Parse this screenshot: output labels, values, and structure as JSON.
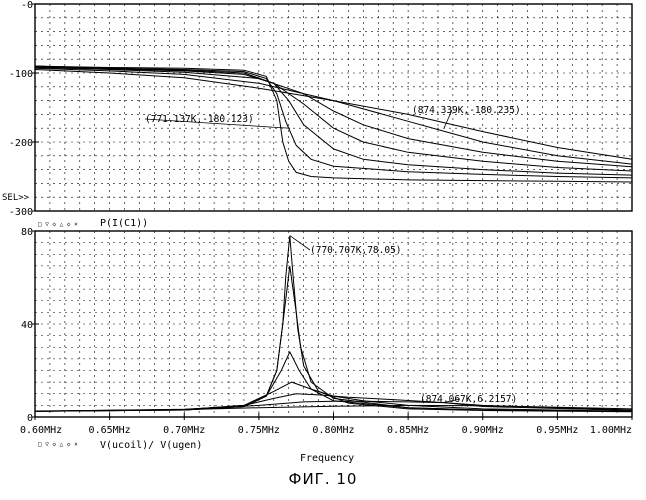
{
  "figure_caption": "ФИГ. 10",
  "chart_data": [
    {
      "type": "line",
      "panel": "top",
      "y_ticks": [
        "-0",
        "-100",
        "-200",
        "-300"
      ],
      "ylim": [
        -300,
        0
      ],
      "xlim": [
        0.6,
        1.0
      ],
      "cursor_label": "SEL>>",
      "trace_label": "",
      "annotations": [
        {
          "text": "(771.137K,-180.123)",
          "x": 0.771,
          "y": -180.123
        },
        {
          "text": "(874.339K,-180.235)",
          "x": 0.874,
          "y": -180.235
        }
      ],
      "series": [
        {
          "x": [
            0.6,
            0.65,
            0.7,
            0.74,
            0.755,
            0.762,
            0.766,
            0.77,
            0.775,
            0.785,
            0.8,
            0.85,
            0.9,
            0.95,
            1.0
          ],
          "y": [
            -90,
            -92,
            -93,
            -96,
            -105,
            -140,
            -200,
            -228,
            -244,
            -250,
            -252,
            -255,
            -256,
            -257,
            -258
          ]
        },
        {
          "x": [
            0.6,
            0.65,
            0.7,
            0.74,
            0.755,
            0.762,
            0.768,
            0.775,
            0.785,
            0.8,
            0.85,
            0.9,
            0.95,
            1.0
          ],
          "y": [
            -90,
            -93,
            -95,
            -98,
            -108,
            -130,
            -170,
            -205,
            -225,
            -235,
            -243,
            -247,
            -250,
            -252
          ]
        },
        {
          "x": [
            0.6,
            0.65,
            0.7,
            0.74,
            0.76,
            0.77,
            0.78,
            0.8,
            0.82,
            0.85,
            0.9,
            0.95,
            1.0
          ],
          "y": [
            -90,
            -93,
            -96,
            -100,
            -115,
            -140,
            -175,
            -210,
            -225,
            -233,
            -240,
            -245,
            -248
          ]
        },
        {
          "x": [
            0.6,
            0.65,
            0.7,
            0.74,
            0.76,
            0.78,
            0.8,
            0.82,
            0.85,
            0.9,
            0.95,
            1.0
          ],
          "y": [
            -91,
            -94,
            -97,
            -102,
            -115,
            -145,
            -180,
            -200,
            -215,
            -228,
            -237,
            -242
          ]
        },
        {
          "x": [
            0.6,
            0.65,
            0.7,
            0.75,
            0.78,
            0.8,
            0.82,
            0.85,
            0.9,
            0.95,
            1.0
          ],
          "y": [
            -92,
            -95,
            -99,
            -108,
            -130,
            -155,
            -175,
            -195,
            -215,
            -228,
            -236
          ]
        },
        {
          "x": [
            0.6,
            0.65,
            0.7,
            0.75,
            0.8,
            0.85,
            0.9,
            0.95,
            1.0
          ],
          "y": [
            -93,
            -97,
            -102,
            -115,
            -140,
            -170,
            -200,
            -220,
            -232
          ]
        },
        {
          "x": [
            0.6,
            0.65,
            0.7,
            0.75,
            0.8,
            0.85,
            0.9,
            0.95,
            1.0
          ],
          "y": [
            -95,
            -100,
            -107,
            -122,
            -140,
            -160,
            -185,
            -208,
            -225
          ]
        }
      ]
    },
    {
      "type": "line",
      "panel": "bottom",
      "y_ticks": [
        "80",
        "40",
        "0"
      ],
      "ylim": [
        0,
        80
      ],
      "xlim": [
        0.6,
        1.0
      ],
      "x_ticks": [
        "0.60MHz",
        "0.65MHz",
        "0.70MHz",
        "0.75MHz",
        "0.80MHz",
        "0.85MHz",
        "0.90MHz",
        "0.95MHz",
        "1.00MHz"
      ],
      "x_tick_values": [
        0.6,
        0.65,
        0.7,
        0.75,
        0.8,
        0.85,
        0.9,
        0.95,
        1.0
      ],
      "xlabel": "Frequency",
      "trace_label": "P(I(C1))",
      "bottom_trace_label": "V(ucoil)/ V(ugen)",
      "annotations": [
        {
          "text": "(770.707K,78.05)",
          "x": 0.7707,
          "y": 78.05
        },
        {
          "text": "(874.067K,6.2157)",
          "x": 0.874,
          "y": 6.2157
        }
      ],
      "series": [
        {
          "x": [
            0.6,
            0.7,
            0.74,
            0.755,
            0.762,
            0.766,
            0.768,
            0.7707,
            0.773,
            0.776,
            0.78,
            0.79,
            0.81,
            0.85,
            0.9,
            1.0
          ],
          "y": [
            2.5,
            3,
            4.5,
            9,
            20,
            40,
            60,
            78,
            60,
            38,
            22,
            11,
            6,
            3.5,
            2.8,
            2.3
          ]
        },
        {
          "x": [
            0.6,
            0.7,
            0.74,
            0.755,
            0.762,
            0.766,
            0.7707,
            0.775,
            0.778,
            0.785,
            0.8,
            0.85,
            0.9,
            1.0
          ],
          "y": [
            2.5,
            3,
            4.5,
            9,
            20,
            40,
            65,
            45,
            30,
            15,
            8,
            4,
            3,
            2.4
          ]
        },
        {
          "x": [
            0.6,
            0.7,
            0.74,
            0.755,
            0.765,
            0.7707,
            0.777,
            0.785,
            0.8,
            0.85,
            0.9,
            1.0
          ],
          "y": [
            2.5,
            3,
            4.5,
            9,
            20,
            28,
            20,
            12,
            7,
            4,
            3,
            2.4
          ]
        },
        {
          "x": [
            0.6,
            0.7,
            0.74,
            0.76,
            0.772,
            0.785,
            0.8,
            0.82,
            0.85,
            0.9,
            1.0
          ],
          "y": [
            2.5,
            3.2,
            5,
            11,
            15,
            12,
            9,
            7,
            5,
            3.5,
            2.5
          ]
        },
        {
          "x": [
            0.6,
            0.7,
            0.74,
            0.76,
            0.775,
            0.79,
            0.81,
            0.84,
            0.874,
            0.9,
            1.0
          ],
          "y": [
            2.5,
            3.2,
            5,
            8,
            10,
            9.5,
            8.5,
            7.5,
            6.2,
            4.5,
            2.8
          ]
        },
        {
          "x": [
            0.6,
            0.7,
            0.75,
            0.78,
            0.8,
            0.82,
            0.85,
            0.874,
            0.9,
            1.0
          ],
          "y": [
            2.5,
            3.3,
            5,
            6.5,
            6.8,
            6.8,
            6.5,
            6.2,
            5,
            3
          ]
        },
        {
          "x": [
            0.6,
            0.7,
            0.75,
            0.8,
            0.85,
            0.9,
            0.95,
            1.0
          ],
          "y": [
            2.6,
            3.2,
            4,
            4.6,
            5,
            4.8,
            4.2,
            3.5
          ]
        }
      ]
    }
  ]
}
